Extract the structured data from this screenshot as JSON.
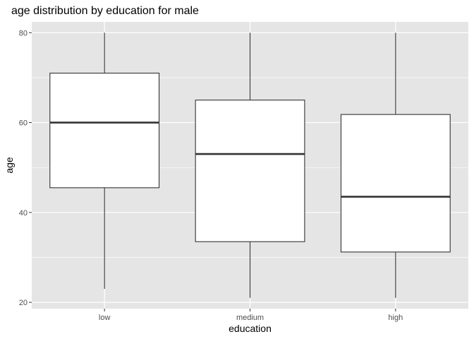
{
  "chart_data": {
    "type": "boxplot",
    "title": "age distribution by education for male",
    "xlabel": "education",
    "ylabel": "age",
    "categories": [
      "low",
      "medium",
      "high"
    ],
    "boxes": [
      {
        "category": "low",
        "min": 23,
        "q1": 45.5,
        "median": 60,
        "q3": 71,
        "max": 80
      },
      {
        "category": "medium",
        "min": 21,
        "q1": 33.5,
        "median": 53,
        "q3": 65,
        "max": 80
      },
      {
        "category": "high",
        "min": 21,
        "q1": 31.2,
        "median": 43.5,
        "q3": 61.8,
        "max": 80
      }
    ],
    "yticks": [
      20,
      40,
      60,
      80
    ],
    "ylim": [
      18.6,
      82.4
    ],
    "grid": true,
    "colors": {
      "panel_background": "#e5e5e5",
      "grid_major": "#ffffff",
      "box_fill": "#ffffff",
      "box_stroke": "#333333",
      "tick_text": "#4d4d4d"
    }
  }
}
